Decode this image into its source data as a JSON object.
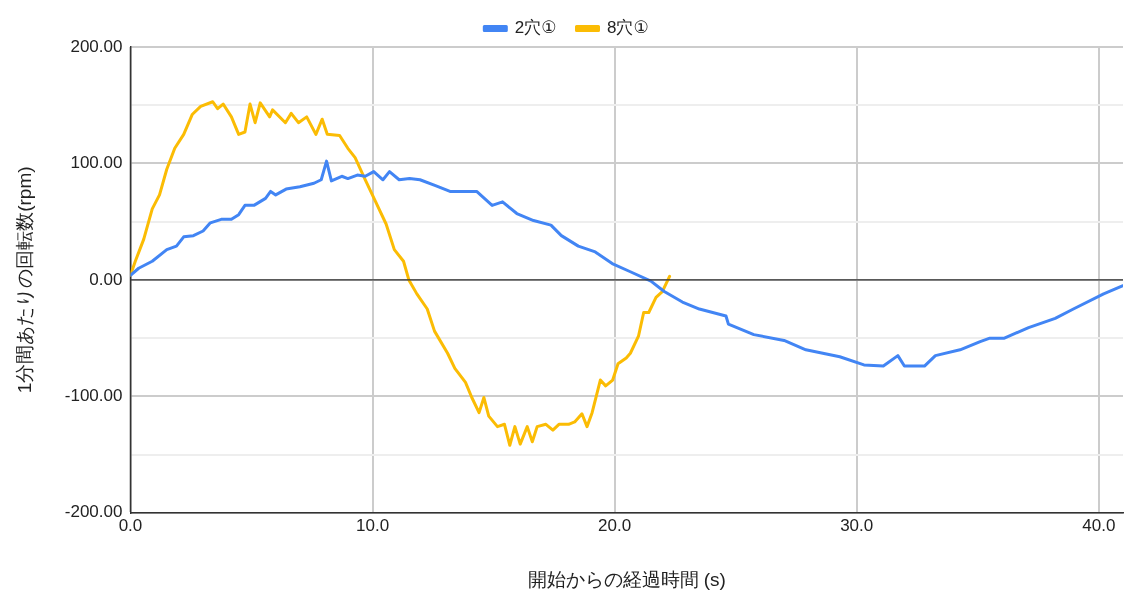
{
  "chart_data": {
    "type": "line",
    "xlabel": "開始からの経過時間 (s)",
    "ylabel": "1分間あたりの回転数(rpm)",
    "xlim": [
      0,
      41
    ],
    "xticks": [
      {
        "value": 0,
        "label": "0.0"
      },
      {
        "value": 10,
        "label": "10.0"
      },
      {
        "value": 20,
        "label": "20.0"
      },
      {
        "value": 30,
        "label": "30.0"
      },
      {
        "value": 40,
        "label": "40.0"
      }
    ],
    "ylim": [
      -200,
      200
    ],
    "yticks": [
      {
        "value": -200,
        "label": "-200.00"
      },
      {
        "value": -150,
        "label": null
      },
      {
        "value": -100,
        "label": "-100.00"
      },
      {
        "value": -50,
        "label": null
      },
      {
        "value": 0,
        "label": "0.00"
      },
      {
        "value": 50,
        "label": null
      },
      {
        "value": 100,
        "label": "100.00"
      },
      {
        "value": 150,
        "label": null
      },
      {
        "value": 200,
        "label": "200.00"
      }
    ],
    "grid": true,
    "legend": "top",
    "marker": "none",
    "line_style": "solid",
    "ref_lines": [
      {
        "axis": "y",
        "value": 0,
        "label": null,
        "color": "#333333"
      }
    ],
    "series": [
      {
        "name": "2穴①",
        "color": "#4285f4",
        "x": [
          0,
          0.34,
          0.9,
          1.5,
          1.9,
          2.2,
          2.6,
          3.0,
          3.3,
          3.75,
          4.17,
          4.47,
          4.73,
          5.1,
          5.58,
          5.79,
          6.0,
          6.43,
          7.0,
          7.58,
          7.88,
          8.1,
          8.3,
          8.73,
          8.98,
          9.37,
          9.7,
          10.05,
          10.43,
          10.7,
          11.1,
          11.53,
          11.96,
          12.6,
          13.2,
          14.3,
          14.94,
          15.37,
          15.96,
          16.65,
          17.37,
          17.8,
          18.5,
          19.2,
          19.9,
          20.65,
          21.5,
          22.05,
          22.8,
          23.5,
          24.6,
          24.7,
          25.75,
          27.0,
          27.9,
          29.3,
          30.3,
          31.1,
          31.7,
          31.97,
          32.8,
          33.25,
          34.27,
          35.1,
          35.5,
          36.1,
          37.1,
          38.2,
          38.95,
          40.2,
          41.0
        ],
        "values": [
          4,
          10,
          16,
          26,
          29,
          37,
          38,
          42,
          49,
          52,
          52,
          56,
          64,
          64,
          70,
          76,
          73,
          78,
          80,
          83,
          86,
          102,
          85,
          89,
          87,
          90,
          89,
          93,
          86,
          93,
          86,
          87,
          86,
          81,
          76,
          76,
          64,
          67,
          57,
          51,
          47,
          38,
          29,
          24,
          14,
          7,
          -1,
          -10,
          -19,
          -25,
          -31,
          -38,
          -47,
          -52,
          -60,
          -66,
          -73,
          -74,
          -65,
          -74,
          -74,
          -65,
          -60,
          -53,
          -50,
          -50,
          -41,
          -33,
          -25,
          -12,
          -5
        ]
      },
      {
        "name": "8穴①",
        "color": "#fbbc04",
        "x": [
          0,
          0.2,
          0.55,
          0.9,
          1.2,
          1.5,
          1.83,
          2.2,
          2.55,
          2.9,
          3.4,
          3.6,
          3.83,
          4.17,
          4.47,
          4.73,
          4.94,
          5.15,
          5.36,
          5.75,
          5.87,
          6.4,
          6.64,
          6.94,
          7.28,
          7.66,
          7.92,
          8.13,
          8.64,
          8.98,
          9.28,
          9.7,
          10.13,
          10.56,
          10.9,
          11.28,
          11.5,
          11.83,
          12.26,
          12.56,
          13.1,
          13.4,
          13.84,
          14.1,
          14.4,
          14.6,
          14.8,
          15.16,
          15.45,
          15.67,
          15.88,
          16.1,
          16.39,
          16.6,
          16.8,
          17.16,
          17.45,
          17.7,
          18.1,
          18.35,
          18.65,
          18.86,
          19.07,
          19.41,
          19.63,
          19.92,
          20.14,
          20.48,
          20.65,
          20.99,
          21.2,
          21.41,
          21.71,
          21.97,
          22.27
        ],
        "values": [
          4,
          16,
          35,
          61,
          73,
          95,
          113,
          125,
          142,
          149,
          153,
          147,
          151,
          140,
          125,
          127,
          151,
          135,
          152,
          140,
          146,
          135,
          143,
          135,
          140,
          125,
          138,
          125,
          124,
          113,
          105,
          86,
          67,
          48,
          26,
          16,
          0,
          -12,
          -25,
          -44,
          -63,
          -76,
          -88,
          -101,
          -114,
          -101,
          -117,
          -126,
          -124,
          -142,
          -126,
          -141,
          -126,
          -139,
          -126,
          -124,
          -129,
          -124,
          -124,
          -122,
          -115,
          -126,
          -114,
          -86,
          -91,
          -86,
          -72,
          -67,
          -63,
          -48,
          -28,
          -28,
          -15,
          -10,
          3
        ]
      }
    ]
  }
}
